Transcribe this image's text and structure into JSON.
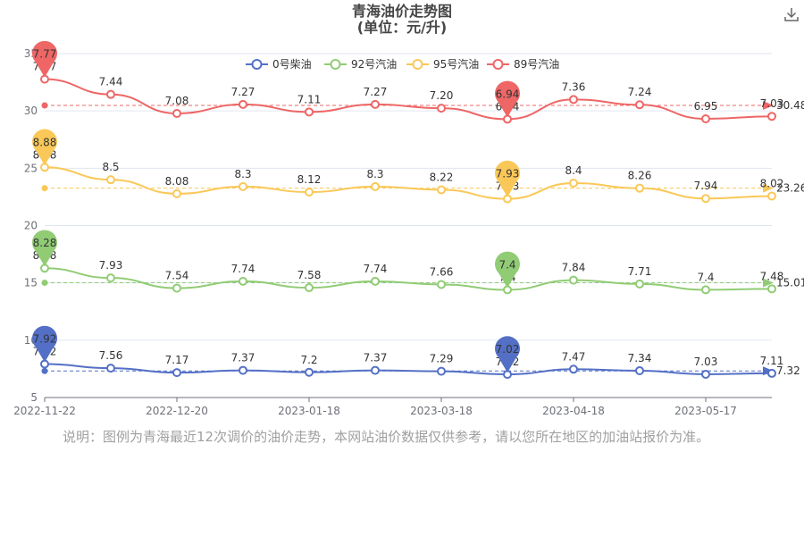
{
  "title_line1": "青海油价走势图",
  "title_line2": "(单位：元/升)",
  "note": "说明：图例为青海最近12次调价的油价走势，本网站油价数据仅供参考，请以您所在地区的加油站报价为准。",
  "download_icon": "download-icon",
  "chart_data": {
    "type": "line",
    "ylim": [
      5,
      35
    ],
    "yticks": [
      "5",
      "10",
      "15",
      "20",
      "25",
      "30",
      "35"
    ],
    "x_tick_labels": [
      "2022-11-22",
      "2022-12-20",
      "2023-01-18",
      "2023-03-18",
      "2023-04-18",
      "2023-05-17"
    ],
    "x_tick_positions": [
      0,
      2,
      4,
      6,
      8,
      10
    ],
    "legend_position": "top",
    "series": [
      {
        "name": "0号柴油",
        "color": "#5470c6",
        "labels": [
          "7.92",
          "7.56",
          "7.17",
          "7.37",
          "7.2",
          "7.37",
          "7.29",
          "7.02",
          "7.47",
          "7.34",
          "7.03",
          "7.11"
        ],
        "plot_values": [
          7.92,
          7.56,
          7.17,
          7.37,
          7.2,
          7.37,
          7.29,
          7.02,
          7.47,
          7.34,
          7.03,
          7.11
        ],
        "max": "7.92",
        "max_index": 0,
        "min": "7.02",
        "min_index": 7,
        "avg_label": "7.32",
        "avg_value": 7.32
      },
      {
        "name": "92号汽油",
        "color": "#91cc75",
        "labels": [
          "8.28",
          "7.93",
          "7.54",
          "7.74",
          "7.58",
          "7.74",
          "7.66",
          "7.4",
          "7.84",
          "7.71",
          "7.4",
          "7.48"
        ],
        "plot_values": [
          16.28,
          15.43,
          14.54,
          15.14,
          14.58,
          15.14,
          14.86,
          14.4,
          15.24,
          14.91,
          14.4,
          14.48
        ],
        "max": "8.28",
        "max_index": 0,
        "min": "7.4",
        "min_index": 7,
        "avg_label": "15.01",
        "avg_value": 15.01
      },
      {
        "name": "95号汽油",
        "color": "#fac858",
        "labels": [
          "8.88",
          "8.5",
          "8.08",
          "8.3",
          "8.12",
          "8.3",
          "8.22",
          "7.93",
          "8.4",
          "8.26",
          "7.94",
          "8.02"
        ],
        "plot_values": [
          25.08,
          24.0,
          22.78,
          23.4,
          22.92,
          23.4,
          23.12,
          22.33,
          23.7,
          23.26,
          22.36,
          22.57
        ],
        "max": "8.88",
        "max_index": 0,
        "min": "7.93",
        "min_index": 7,
        "avg_label": "23.26",
        "avg_value": 23.26
      },
      {
        "name": "89号汽油",
        "color": "#ee6666",
        "labels": [
          "7.77",
          "7.44",
          "7.08",
          "7.27",
          "7.11",
          "7.27",
          "7.20",
          "6.94",
          "7.36",
          "7.24",
          "6.95",
          "7.03"
        ],
        "plot_values": [
          32.77,
          31.44,
          29.78,
          30.57,
          29.91,
          30.57,
          30.24,
          29.28,
          31.0,
          30.54,
          29.31,
          29.53
        ],
        "max": "7.77",
        "max_index": 0,
        "min": "6.94",
        "min_index": 7,
        "avg_label": "30.48",
        "avg_value": 30.48
      }
    ]
  }
}
